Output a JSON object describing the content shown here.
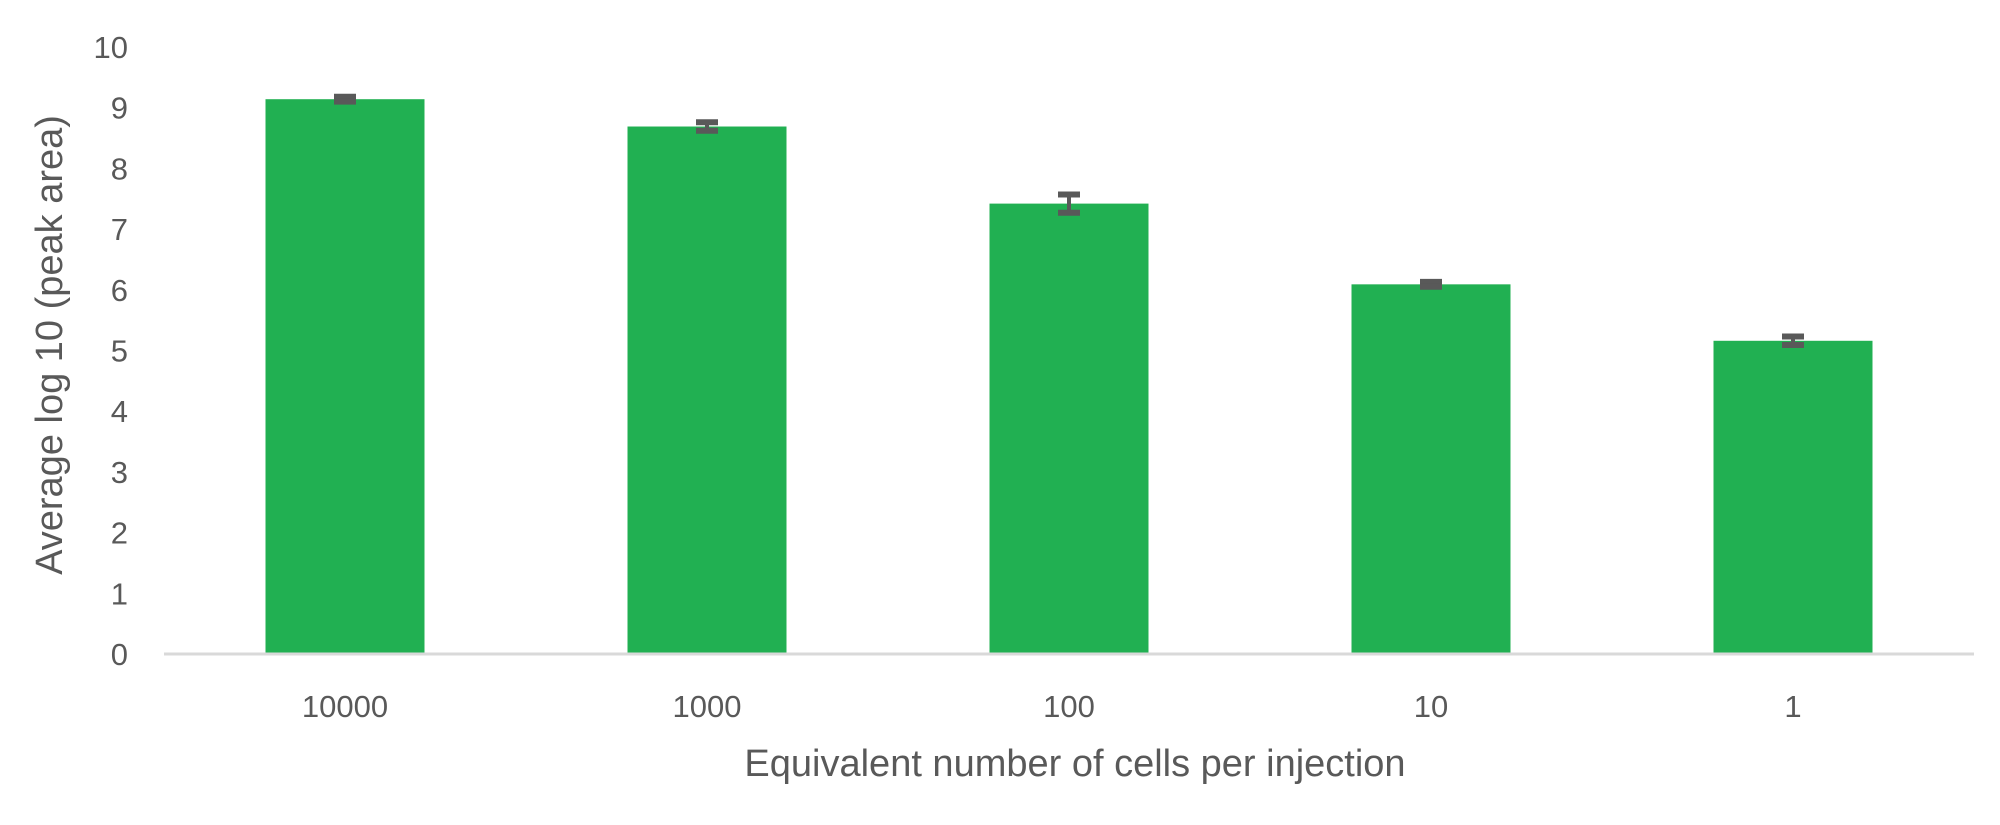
{
  "chart_data": {
    "type": "bar",
    "title": "",
    "xlabel": "Equivalent number of cells per injection",
    "ylabel": "Average log 10 (peak area)",
    "categories": [
      "10000",
      "1000",
      "100",
      "10",
      "1"
    ],
    "values": [
      9.14,
      8.69,
      7.42,
      6.09,
      5.16
    ],
    "error": [
      0.04,
      0.07,
      0.15,
      0.04,
      0.07
    ],
    "ylim": [
      0,
      10
    ],
    "yticks": [
      "0",
      "1",
      "2",
      "3",
      "4",
      "5",
      "6",
      "7",
      "8",
      "9",
      "10"
    ],
    "grid": false,
    "legend": "none",
    "colors": {
      "bar": "#21B052",
      "error_bar": "#595959",
      "axis": "#D9D9D9",
      "text": "#595959"
    }
  }
}
